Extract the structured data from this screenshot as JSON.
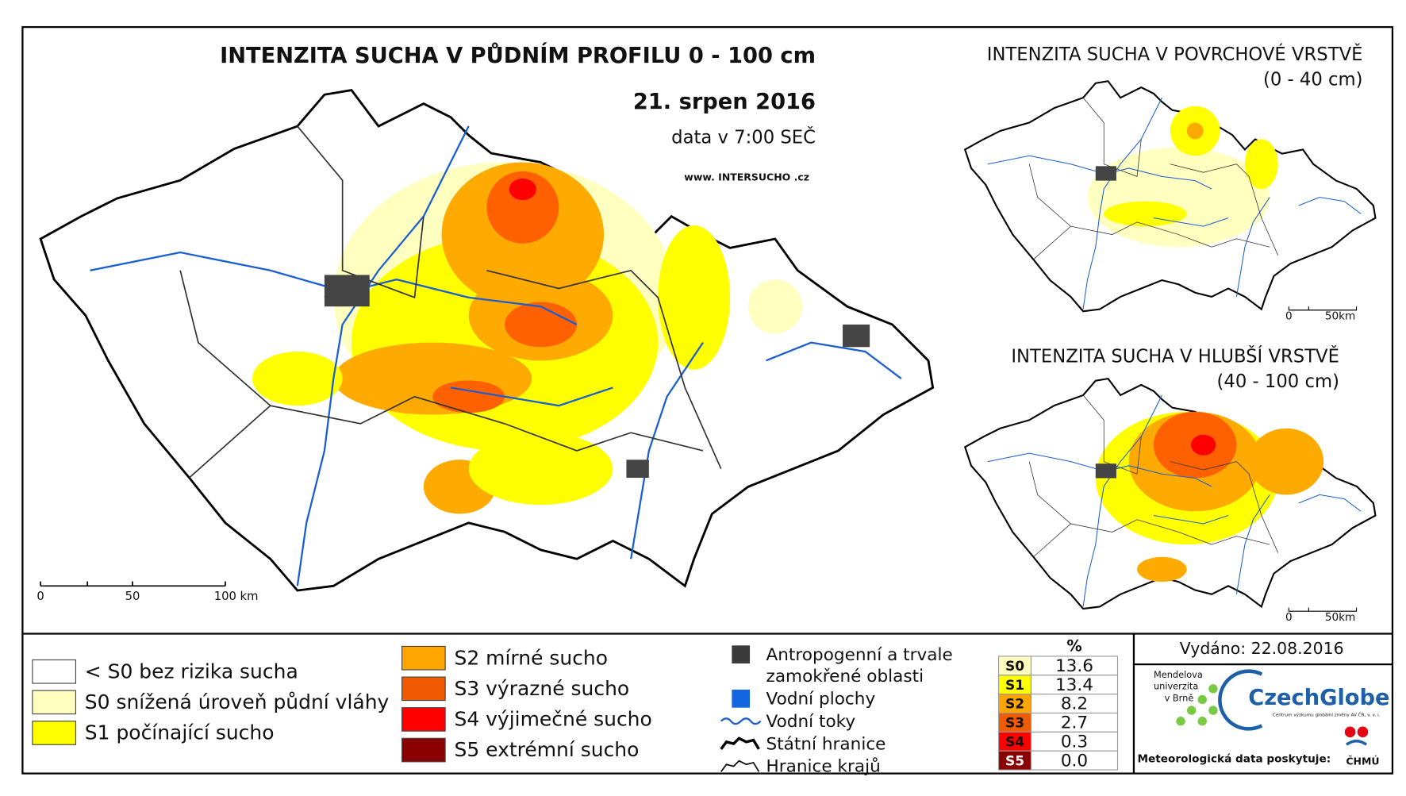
{
  "header": {
    "title": "INTENZITA SUCHA V PŮDNÍM PROFILU 0 - 100 cm",
    "date": "21. srpen 2016",
    "time_note": "data v 7:00 SEČ",
    "website": "www. INTERSUCHO .cz"
  },
  "main_map": {
    "scale_labels": [
      "0",
      "50",
      "100 km"
    ]
  },
  "insets": [
    {
      "title": "INTENZITA SUCHA V POVRCHOVÉ VRSTVĚ",
      "subtitle": "(0 - 40 cm)",
      "scale_labels": [
        "0",
        "50km"
      ]
    },
    {
      "title": "INTENZITA SUCHA V HLUBŠÍ VRSTVĚ",
      "subtitle": "(40 - 100 cm)",
      "scale_labels": [
        "0",
        "50km"
      ]
    }
  ],
  "legend": {
    "drought_classes": [
      "< S0 bez rizika sucha",
      "S0 snížená úroveň půdní vláhy",
      "S1 počínající sucho",
      "S2 mírné sucho",
      "S3 výrazné sucho",
      "S4 výjimečné sucho",
      "S5 extrémní sucho"
    ],
    "features": [
      [
        "Antropogenní a trvale",
        "zamokřené oblasti"
      ],
      [
        "Vodní plochy"
      ],
      [
        "Vodní toky"
      ],
      [
        "Státní hranice"
      ],
      [
        "Hranice krajů"
      ]
    ]
  },
  "table": {
    "header": "%",
    "rows": [
      [
        "S0",
        "13.6"
      ],
      [
        "S1",
        "13.4"
      ],
      [
        "S2",
        "8.2"
      ],
      [
        "S3",
        "2.7"
      ],
      [
        "S4",
        "0.3"
      ],
      [
        "S5",
        "0.0"
      ]
    ]
  },
  "credits": {
    "issued": "Vydáno: 22.08.2016",
    "mendel": [
      "Mendelova",
      "univerzita",
      "v Brně"
    ],
    "czechglobe": "CzechGlobe",
    "czechglobe_sub": "Centrum výzkumu globální změny AV ČR, v. v. i.",
    "data_provider": "Meteorologická data poskytuje:",
    "chmu": "ČHMÚ"
  }
}
